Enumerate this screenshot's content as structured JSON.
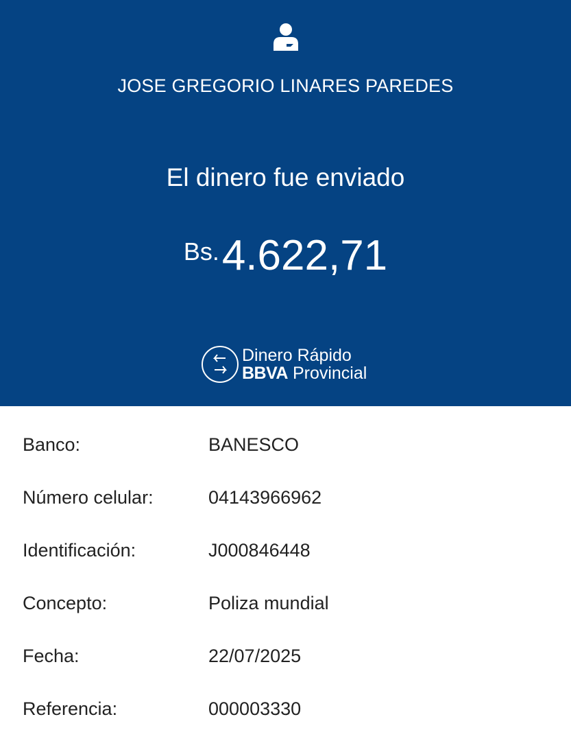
{
  "header": {
    "icon": "user-icon",
    "recipient_name": "JOSE GREGORIO LINARES PAREDES",
    "status_message": "El dinero fue enviado",
    "currency": "Bs.",
    "amount": "4.622,71",
    "logo": {
      "line1": "Dinero Rápido",
      "brand": "BBVA",
      "line2": "Provincial"
    },
    "color": "#054383"
  },
  "details": [
    {
      "label": "Banco:",
      "value": "BANESCO"
    },
    {
      "label": "Número celular:",
      "value": "04143966962"
    },
    {
      "label": "Identificación:",
      "value": "J000846448"
    },
    {
      "label": "Concepto:",
      "value": "Poliza mundial"
    },
    {
      "label": "Fecha:",
      "value": "22/07/2025"
    },
    {
      "label": "Referencia:",
      "value": "000003330"
    }
  ]
}
